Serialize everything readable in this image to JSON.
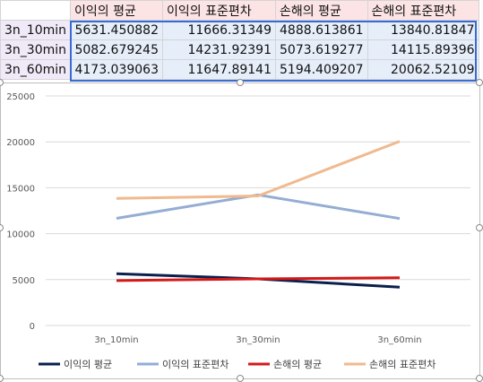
{
  "table": {
    "headers": [
      "이익의 평균",
      "이익의 표준편차",
      "손해의 평균",
      "손해의 표준편차"
    ],
    "rows": [
      {
        "label": "3n_10min",
        "values": [
          "5631.450882",
          "11666.31349",
          "4888.613861",
          "13840.81847"
        ]
      },
      {
        "label": "3n_30min",
        "values": [
          "5082.679245",
          "14231.92391",
          "5073.619277",
          "14115.89396"
        ]
      },
      {
        "label": "3n_60min",
        "values": [
          "4173.039063",
          "11647.89141",
          "5194.409207",
          "20062.52109"
        ]
      }
    ]
  },
  "chart_data": {
    "type": "line",
    "title": "",
    "xlabel": "",
    "ylabel": "",
    "categories": [
      "3n_10min",
      "3n_30min",
      "3n_60min"
    ],
    "ylim": [
      0,
      25000
    ],
    "yticks": [
      0,
      5000,
      10000,
      15000,
      20000,
      25000
    ],
    "grid": true,
    "legend_position": "bottom",
    "series": [
      {
        "name": "이익의 평균",
        "color": "#0b1f4d",
        "values": [
          5631.450882,
          5082.679245,
          4173.039063
        ]
      },
      {
        "name": "이익의 표준편차",
        "color": "#94add3",
        "values": [
          11666.31349,
          14231.92391,
          11647.89141
        ]
      },
      {
        "name": "손해의 평균",
        "color": "#d41919",
        "values": [
          4888.613861,
          5073.619277,
          5194.409207
        ]
      },
      {
        "name": "손해의 표준편차",
        "color": "#f0b98e",
        "values": [
          13840.81847,
          14115.89396,
          20062.52109
        ]
      }
    ]
  }
}
